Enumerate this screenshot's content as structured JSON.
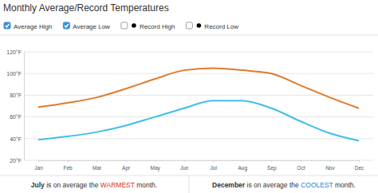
{
  "chart_data": {
    "type": "line",
    "title": "Monthly Average/Record Temperatures",
    "categories": [
      "Jan",
      "Feb",
      "Mar",
      "Apr",
      "May",
      "Jun",
      "Jul",
      "Aug",
      "Sep",
      "Oct",
      "Nov",
      "Dec"
    ],
    "series": [
      {
        "name": "Average High",
        "color": "#e07a2c",
        "line_style": "solid",
        "values": [
          69,
          73,
          78,
          86,
          95,
          103,
          105,
          103,
          100,
          89,
          78,
          68
        ]
      },
      {
        "name": "Average Low",
        "color": "#3fbfe6",
        "line_style": "solid",
        "values": [
          39,
          42,
          46,
          52,
          60,
          68,
          75,
          75,
          68,
          56,
          45,
          38
        ]
      },
      {
        "name": "Record High",
        "color": "#000000",
        "marker": "circle",
        "values": [
          null,
          null,
          null,
          null,
          null,
          null,
          null,
          null,
          null,
          null,
          null,
          null
        ]
      },
      {
        "name": "Record Low",
        "color": "#000000",
        "marker": "circle",
        "values": [
          null,
          null,
          null,
          null,
          null,
          null,
          null,
          null,
          null,
          null,
          null,
          null
        ]
      }
    ],
    "ylim": [
      20,
      120
    ],
    "yticks": [
      {
        "value": 20,
        "label": "20°F"
      },
      {
        "value": 40,
        "label": "40°F"
      },
      {
        "value": 60,
        "label": "60°F"
      },
      {
        "value": 80,
        "label": "80°F"
      },
      {
        "value": 100,
        "label": "100°F"
      },
      {
        "value": 120,
        "label": "120°F"
      }
    ],
    "grid": true,
    "legend": "top-left",
    "annotations": [
      "July is on average the WARMEST month.",
      "December is on average the COOLEST month."
    ]
  }
}
